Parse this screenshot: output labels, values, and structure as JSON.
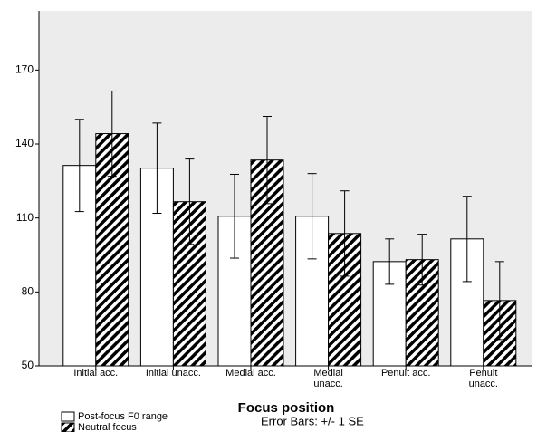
{
  "chart_data": {
    "type": "bar",
    "x_label": "Focus position",
    "annotation": "Error Bars: +/- 1 SE",
    "categories": [
      "Initial acc.",
      "Initial unacc.",
      "Medial acc.",
      "Medial\nunacc.",
      "Penult acc.",
      "Penult\nunacc."
    ],
    "series": [
      {
        "name": "Post-focus F0 range",
        "color": "#ffffff",
        "hatch": false,
        "values": [
          131.3,
          130.2,
          110.7,
          110.7,
          92.3,
          101.5
        ],
        "errors": [
          18.7,
          18.3,
          17,
          17.3,
          9.2,
          17.3
        ]
      },
      {
        "name": "Neutral focus",
        "color": "#ffffff",
        "hatch": true,
        "values": [
          144.2,
          116.6,
          133.5,
          103.7,
          93.1,
          76.5
        ],
        "errors": [
          17.3,
          17.3,
          17.7,
          17.3,
          10.3,
          15.8
        ]
      }
    ],
    "ylim": [
      50,
      194
    ],
    "yticks": [
      50,
      80,
      110,
      140,
      170
    ]
  }
}
